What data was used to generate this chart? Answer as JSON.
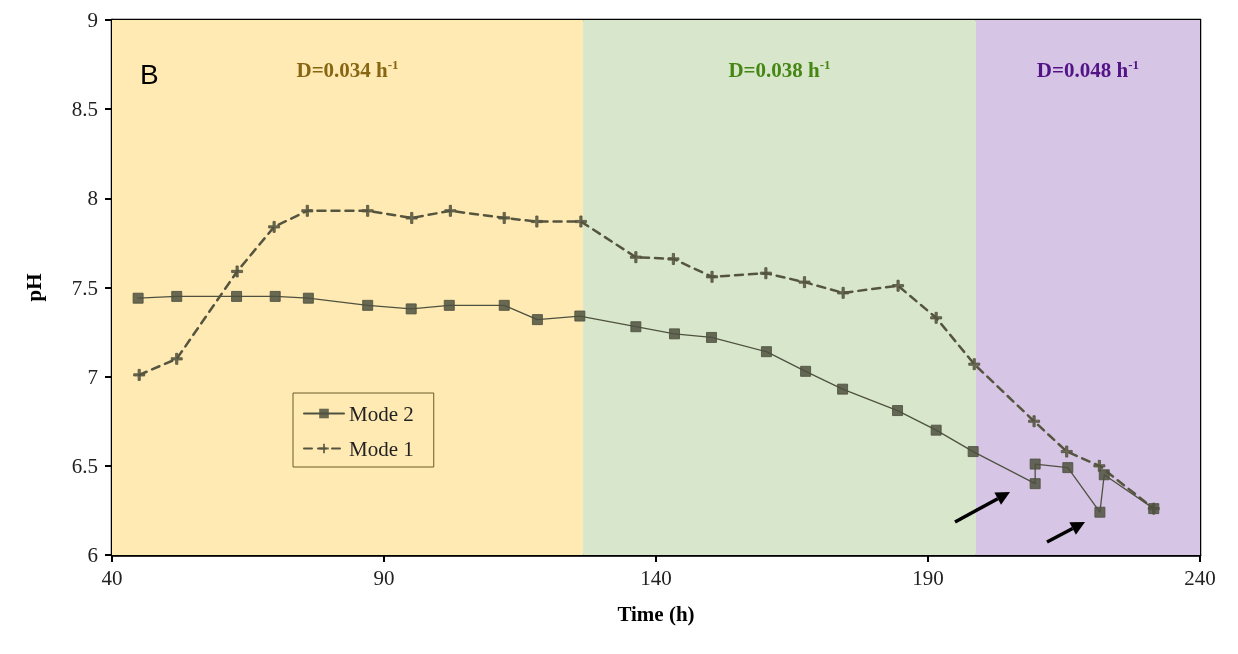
{
  "chart_data": {
    "type": "line",
    "xlabel": "Time (h)",
    "ylabel": "pH",
    "annotations": [
      "B"
    ],
    "xlim": [
      40,
      240
    ],
    "xticks": [
      40,
      90,
      140,
      190,
      240
    ],
    "ylim": [
      6,
      9
    ],
    "yticks": [
      6,
      6.5,
      7,
      7.5,
      8,
      8.5,
      9
    ],
    "grid": false,
    "legend": "bottom left",
    "bands": [
      {
        "axis": "x",
        "from": 40,
        "to": 126.6,
        "label": "D=0.034 h$^{-1}$",
        "color": "#ffeab3"
      },
      {
        "axis": "x",
        "from": 126.6,
        "to": 198.8,
        "label": "D=0.038 h$^{-1}$",
        "color": "#d8e7cc"
      },
      {
        "axis": "x",
        "from": 198.8,
        "to": 240,
        "label": "D=0.048 h$^{-1}$",
        "color": "#d7c5e6"
      }
    ],
    "series": [
      {
        "name": "Mode 2",
        "color": "#4f5140",
        "marker": "square",
        "line_style": "solid",
        "x": [
          44.8,
          51.9,
          62.9,
          70.0,
          76.1,
          87.0,
          95.0,
          102.0,
          112.1,
          118.2,
          126.0,
          136.3,
          143.4,
          150.2,
          160.3,
          167.5,
          174.3,
          184.4,
          191.5,
          198.3,
          209.7,
          209.7,
          215.7,
          221.6,
          222.4,
          231.5
        ],
        "values": [
          7.44,
          7.45,
          7.45,
          7.45,
          7.44,
          7.4,
          7.38,
          7.4,
          7.4,
          7.32,
          7.34,
          7.28,
          7.24,
          7.22,
          7.14,
          7.03,
          6.93,
          6.81,
          6.7,
          6.58,
          6.4,
          6.51,
          6.49,
          6.24,
          6.45,
          6.26
        ]
      },
      {
        "name": "Mode 1",
        "color": "#55553f",
        "marker": "cross",
        "line_style": "dashed",
        "x": [
          45.0,
          51.9,
          63.0,
          69.8,
          75.9,
          87.0,
          95.1,
          102.2,
          112.1,
          118.1,
          126.2,
          136.3,
          143.2,
          150.3,
          160.2,
          167.3,
          174.4,
          184.5,
          191.5,
          198.5,
          209.5,
          215.5,
          221.5,
          231.5
        ],
        "values": [
          7.01,
          7.1,
          7.59,
          7.84,
          7.93,
          7.93,
          7.89,
          7.93,
          7.89,
          7.87,
          7.87,
          7.67,
          7.66,
          7.56,
          7.58,
          7.53,
          7.47,
          7.51,
          7.33,
          7.07,
          6.75,
          6.58,
          6.5,
          6.26
        ]
      }
    ]
  }
}
